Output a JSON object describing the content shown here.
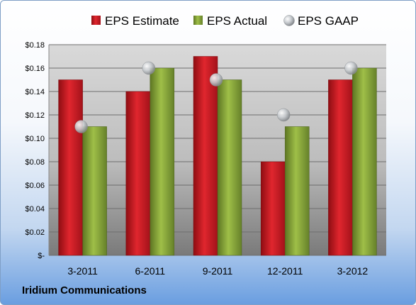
{
  "company_label": "Iridium Communications",
  "colors": {
    "estimate": "#d31d26",
    "actual": "#8fae3c",
    "gaap": "#b0b4b8"
  },
  "chart_data": {
    "type": "bar",
    "categories": [
      "3-2011",
      "6-2011",
      "9-2011",
      "12-2011",
      "3-2012"
    ],
    "series": [
      {
        "name": "EPS Estimate",
        "type": "bar",
        "values": [
          0.15,
          0.14,
          0.17,
          0.08,
          0.15
        ]
      },
      {
        "name": "EPS Actual",
        "type": "bar",
        "values": [
          0.11,
          0.16,
          0.15,
          0.11,
          0.16
        ]
      },
      {
        "name": "EPS GAAP",
        "type": "scatter",
        "values": [
          0.11,
          0.16,
          0.15,
          0.12,
          0.16
        ]
      }
    ],
    "ylim": [
      0,
      0.18
    ],
    "yticks": [
      0,
      0.02,
      0.04,
      0.06,
      0.08,
      0.1,
      0.12,
      0.14,
      0.16,
      0.18
    ],
    "ytick_labels": [
      "$-",
      "$0.02",
      "$0.04",
      "$0.06",
      "$0.08",
      "$0.10",
      "$0.12",
      "$0.14",
      "$0.16",
      "$0.18"
    ],
    "grid": true,
    "legend_position": "top"
  }
}
